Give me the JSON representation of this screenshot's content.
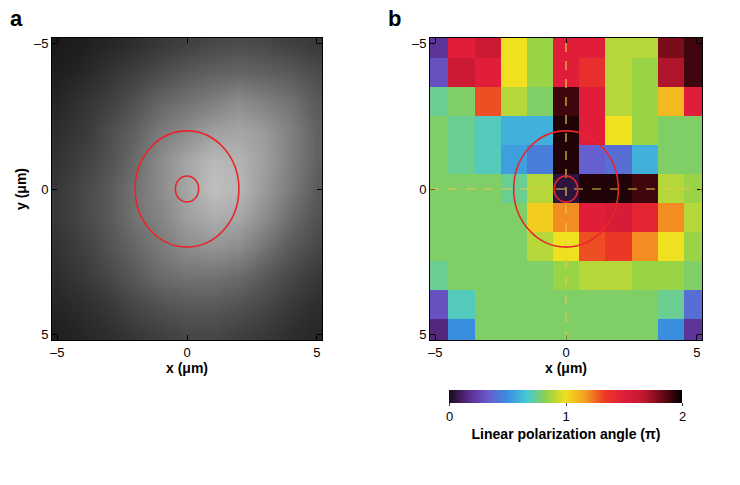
{
  "chart_data": [
    {
      "type": "heatmap",
      "panel": "a",
      "x": [
        -5,
        -4,
        -3,
        -2,
        -1,
        0,
        1,
        2,
        3,
        4,
        5
      ],
      "y": [
        -5,
        -4,
        -3,
        -2,
        -1,
        0,
        1,
        2,
        3,
        4,
        5
      ],
      "z": [
        [
          0.1,
          0.12,
          0.15,
          0.18,
          0.22,
          0.25,
          0.28,
          0.3,
          0.28,
          0.25,
          0.22
        ],
        [
          0.12,
          0.15,
          0.2,
          0.25,
          0.3,
          0.35,
          0.38,
          0.4,
          0.38,
          0.35,
          0.3
        ],
        [
          0.15,
          0.2,
          0.25,
          0.32,
          0.4,
          0.45,
          0.5,
          0.55,
          0.5,
          0.45,
          0.35
        ],
        [
          0.18,
          0.22,
          0.3,
          0.38,
          0.48,
          0.55,
          0.62,
          0.65,
          0.6,
          0.5,
          0.38
        ],
        [
          0.2,
          0.25,
          0.32,
          0.42,
          0.55,
          0.65,
          0.72,
          0.7,
          0.62,
          0.5,
          0.38
        ],
        [
          0.22,
          0.28,
          0.35,
          0.45,
          0.55,
          0.65,
          0.75,
          0.72,
          0.6,
          0.48,
          0.35
        ],
        [
          0.22,
          0.28,
          0.35,
          0.45,
          0.52,
          0.62,
          0.68,
          0.65,
          0.55,
          0.42,
          0.32
        ],
        [
          0.2,
          0.25,
          0.32,
          0.4,
          0.48,
          0.55,
          0.58,
          0.55,
          0.45,
          0.35,
          0.28
        ],
        [
          0.18,
          0.22,
          0.28,
          0.35,
          0.42,
          0.45,
          0.45,
          0.42,
          0.35,
          0.28,
          0.22
        ],
        [
          0.15,
          0.18,
          0.22,
          0.28,
          0.32,
          0.35,
          0.35,
          0.32,
          0.28,
          0.22,
          0.18
        ],
        [
          0.12,
          0.15,
          0.18,
          0.22,
          0.25,
          0.28,
          0.28,
          0.25,
          0.22,
          0.18,
          0.15
        ]
      ],
      "colors": [
        "#000000",
        "#ffffff"
      ],
      "z_range": [
        0,
        1
      ],
      "xlim": [
        -5.2,
        5.2
      ],
      "ylim": [
        5.2,
        -5.2
      ],
      "xticks": [
        {
          "value": -5,
          "label": "–5"
        },
        0,
        5
      ],
      "yticks": [
        {
          "value": -5,
          "label": "–5"
        },
        0,
        5
      ],
      "xlabel": "x (μm)",
      "ylabel": "y (μm)",
      "circles": [
        {
          "x": 0,
          "y": 0,
          "r": 0.45
        },
        {
          "x": 0,
          "y": 0,
          "r": 2
        }
      ],
      "color": "#e8262a"
    },
    {
      "type": "heatmap",
      "panel": "b",
      "x": [
        -5,
        -4,
        -3,
        -2,
        -1,
        0,
        1,
        2,
        3,
        4,
        5
      ],
      "y": [
        -5,
        -4,
        -3,
        -2,
        -1,
        0,
        1,
        2,
        3,
        4,
        5
      ],
      "z": [
        [
          0.2,
          1.5,
          1.6,
          1.0,
          0.85,
          1.5,
          1.5,
          0.9,
          0.9,
          1.8,
          1.9
        ],
        [
          0.3,
          1.6,
          1.5,
          1.0,
          0.85,
          1.5,
          1.4,
          0.9,
          0.85,
          1.7,
          1.9
        ],
        [
          0.75,
          0.8,
          1.3,
          0.9,
          0.8,
          1.9,
          1.5,
          0.9,
          0.85,
          1.1,
          1.5
        ],
        [
          0.8,
          0.75,
          0.7,
          0.6,
          0.6,
          1.95,
          1.5,
          1.0,
          0.85,
          0.8,
          0.8
        ],
        [
          0.8,
          0.75,
          0.7,
          0.55,
          0.45,
          1.95,
          0.35,
          0.4,
          0.6,
          0.8,
          0.8
        ],
        [
          0.8,
          0.8,
          0.8,
          0.75,
          0.9,
          0.05,
          1.95,
          1.95,
          1.9,
          0.9,
          0.85
        ],
        [
          0.8,
          0.8,
          0.8,
          0.8,
          1.05,
          1.2,
          1.5,
          1.55,
          1.45,
          1.2,
          0.9
        ],
        [
          0.8,
          0.8,
          0.8,
          0.8,
          0.9,
          1.0,
          1.3,
          1.35,
          1.2,
          1.0,
          0.85
        ],
        [
          0.75,
          0.8,
          0.8,
          0.8,
          0.8,
          0.85,
          0.9,
          0.9,
          0.85,
          0.85,
          0.8
        ],
        [
          0.3,
          0.7,
          0.8,
          0.8,
          0.8,
          0.8,
          0.8,
          0.8,
          0.8,
          0.75,
          0.4
        ],
        [
          0.15,
          0.5,
          0.8,
          0.8,
          0.8,
          0.8,
          0.8,
          0.8,
          0.8,
          0.5,
          0.2
        ]
      ],
      "colors": [
        "#1a0a1e",
        "#5a2a8a",
        "#6a5acd",
        "#3a8ee0",
        "#45c8d8",
        "#8fd14a",
        "#f0e020",
        "#f5a020",
        "#ec3a24",
        "#e01e3a",
        "#c01830",
        "#6a0a16",
        "#000000"
      ],
      "xlim": [
        -5.2,
        5.2
      ],
      "ylim": [
        5.2,
        -5.2
      ],
      "xticks": [
        {
          "value": -5,
          "label": "–5"
        },
        0,
        5
      ],
      "yticks": [
        {
          "value": -5,
          "label": "–5"
        },
        0,
        5
      ],
      "xlabel": "x (μm)",
      "circles": [
        {
          "x": 0,
          "y": 0,
          "r": 0.45
        },
        {
          "x": 0,
          "y": 0,
          "r": 2
        }
      ],
      "color": "#e8262a",
      "guides": {
        "x": 0,
        "y": 0
      },
      "colorbar": {
        "title": "Linear polarization angle (π)",
        "range": [
          0,
          2
        ],
        "ticks": [
          0,
          1,
          2
        ]
      }
    }
  ]
}
